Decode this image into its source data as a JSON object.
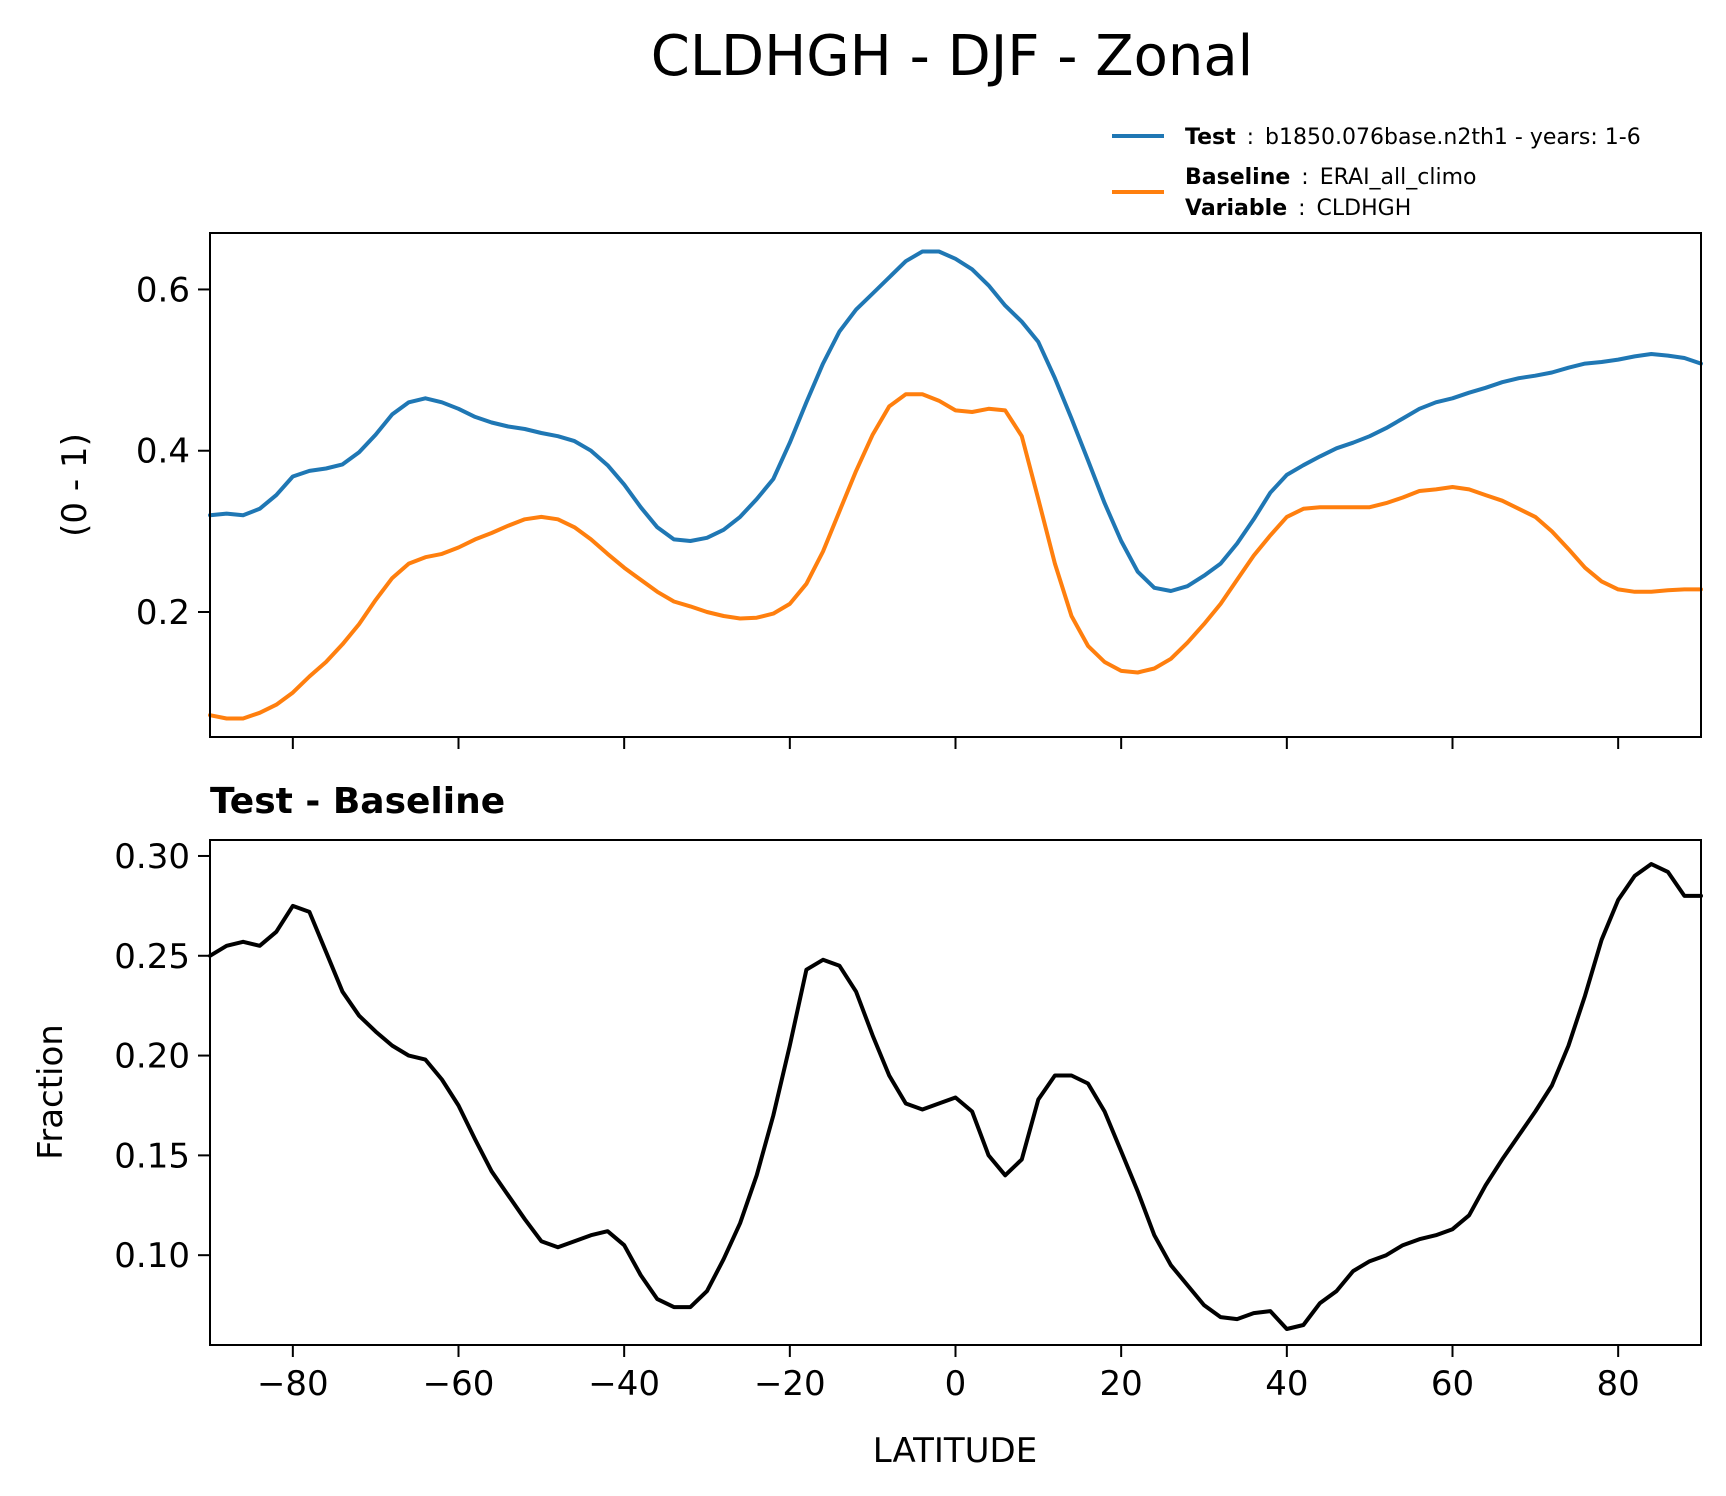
{
  "figure": {
    "title": "CLDHGH - DJF - Zonal"
  },
  "legend": {
    "test_key": "Test",
    "test_value": "b1850.076base.n2th1 - years: 1-6",
    "baseline_key": "Baseline",
    "baseline_value": "ERAI_all_climo",
    "variable_key": "Variable",
    "variable_value": "CLDHGH",
    "sep": ":"
  },
  "chart_data": [
    {
      "type": "line",
      "panel": "top",
      "title": "",
      "xlabel": "",
      "ylabel": "(0 - 1)",
      "xlim": [
        -90,
        90
      ],
      "ylim": [
        0.045,
        0.67
      ],
      "xticks": [
        -80,
        -60,
        -40,
        -20,
        0,
        20,
        40,
        60,
        80
      ],
      "yticks": [
        0.2,
        0.4,
        0.6
      ],
      "ytick_labels": [
        "0.2",
        "0.4",
        "0.6"
      ],
      "show_xtick_labels": false,
      "grid": false,
      "series": [
        {
          "name": "Test",
          "color": "#1f77b4",
          "x": [
            -90,
            -88,
            -86,
            -84,
            -82,
            -80,
            -78,
            -76,
            -74,
            -72,
            -70,
            -68,
            -66,
            -64,
            -62,
            -60,
            -58,
            -56,
            -54,
            -52,
            -50,
            -48,
            -46,
            -44,
            -42,
            -40,
            -38,
            -36,
            -34,
            -32,
            -30,
            -28,
            -26,
            -24,
            -22,
            -20,
            -18,
            -16,
            -14,
            -12,
            -10,
            -8,
            -6,
            -4,
            -2,
            0,
            2,
            4,
            6,
            8,
            10,
            12,
            14,
            16,
            18,
            20,
            22,
            24,
            26,
            28,
            30,
            32,
            34,
            36,
            38,
            40,
            42,
            44,
            46,
            48,
            50,
            52,
            54,
            56,
            58,
            60,
            62,
            64,
            66,
            68,
            70,
            72,
            74,
            76,
            78,
            80,
            82,
            84,
            86,
            88,
            90
          ],
          "y": [
            0.32,
            0.322,
            0.32,
            0.328,
            0.345,
            0.368,
            0.375,
            0.378,
            0.383,
            0.398,
            0.42,
            0.445,
            0.46,
            0.465,
            0.46,
            0.452,
            0.442,
            0.435,
            0.43,
            0.427,
            0.422,
            0.418,
            0.412,
            0.4,
            0.382,
            0.358,
            0.33,
            0.305,
            0.29,
            0.288,
            0.292,
            0.302,
            0.318,
            0.34,
            0.365,
            0.41,
            0.46,
            0.508,
            0.548,
            0.575,
            0.595,
            0.615,
            0.635,
            0.647,
            0.647,
            0.638,
            0.625,
            0.605,
            0.58,
            0.56,
            0.535,
            0.49,
            0.44,
            0.388,
            0.335,
            0.288,
            0.25,
            0.23,
            0.226,
            0.232,
            0.245,
            0.26,
            0.285,
            0.315,
            0.348,
            0.37,
            0.382,
            0.393,
            0.403,
            0.41,
            0.418,
            0.428,
            0.44,
            0.452,
            0.46,
            0.465,
            0.472,
            0.478,
            0.485,
            0.49,
            0.493,
            0.497,
            0.503,
            0.508,
            0.51,
            0.513,
            0.517,
            0.52,
            0.518,
            0.515,
            0.508
          ]
        },
        {
          "name": "Baseline",
          "color": "#ff7f0e",
          "x": [
            -90,
            -88,
            -86,
            -84,
            -82,
            -80,
            -78,
            -76,
            -74,
            -72,
            -70,
            -68,
            -66,
            -64,
            -62,
            -60,
            -58,
            -56,
            -54,
            -52,
            -50,
            -48,
            -46,
            -44,
            -42,
            -40,
            -38,
            -36,
            -34,
            -32,
            -30,
            -28,
            -26,
            -24,
            -22,
            -20,
            -18,
            -16,
            -14,
            -12,
            -10,
            -8,
            -6,
            -4,
            -2,
            0,
            2,
            4,
            6,
            8,
            10,
            12,
            14,
            16,
            18,
            20,
            22,
            24,
            26,
            28,
            30,
            32,
            34,
            36,
            38,
            40,
            42,
            44,
            46,
            48,
            50,
            52,
            54,
            56,
            58,
            60,
            62,
            64,
            66,
            68,
            70,
            72,
            74,
            76,
            78,
            80,
            82,
            84,
            86,
            88,
            90
          ],
          "y": [
            0.072,
            0.068,
            0.068,
            0.075,
            0.085,
            0.1,
            0.12,
            0.138,
            0.16,
            0.185,
            0.215,
            0.242,
            0.26,
            0.268,
            0.272,
            0.28,
            0.29,
            0.298,
            0.307,
            0.315,
            0.318,
            0.315,
            0.305,
            0.29,
            0.272,
            0.255,
            0.24,
            0.225,
            0.213,
            0.207,
            0.2,
            0.195,
            0.192,
            0.193,
            0.198,
            0.21,
            0.235,
            0.275,
            0.325,
            0.375,
            0.42,
            0.455,
            0.47,
            0.47,
            0.462,
            0.45,
            0.448,
            0.452,
            0.45,
            0.418,
            0.34,
            0.26,
            0.195,
            0.158,
            0.138,
            0.127,
            0.125,
            0.13,
            0.142,
            0.162,
            0.185,
            0.21,
            0.24,
            0.27,
            0.295,
            0.318,
            0.328,
            0.33,
            0.33,
            0.33,
            0.33,
            0.335,
            0.342,
            0.35,
            0.352,
            0.355,
            0.352,
            0.345,
            0.338,
            0.328,
            0.318,
            0.3,
            0.278,
            0.255,
            0.238,
            0.228,
            0.225,
            0.225,
            0.227,
            0.228,
            0.228
          ]
        }
      ]
    },
    {
      "type": "line",
      "panel": "bottom",
      "title": "Test - Baseline",
      "xlabel": "LATITUDE",
      "ylabel": "Fraction",
      "xlim": [
        -90,
        90
      ],
      "ylim": [
        0.055,
        0.308
      ],
      "xticks": [
        -80,
        -60,
        -40,
        -20,
        0,
        20,
        40,
        60,
        80
      ],
      "xtick_labels": [
        "−80",
        "−60",
        "−40",
        "−20",
        "0",
        "20",
        "40",
        "60",
        "80"
      ],
      "yticks": [
        0.1,
        0.15,
        0.2,
        0.25,
        0.3
      ],
      "ytick_labels": [
        "0.10",
        "0.15",
        "0.20",
        "0.25",
        "0.30"
      ],
      "show_xtick_labels": true,
      "grid": false,
      "series": [
        {
          "color": "#000000",
          "x": [
            -90,
            -88,
            -86,
            -84,
            -82,
            -80,
            -78,
            -76,
            -74,
            -72,
            -70,
            -68,
            -66,
            -64,
            -62,
            -60,
            -58,
            -56,
            -54,
            -52,
            -50,
            -48,
            -46,
            -44,
            -42,
            -40,
            -38,
            -36,
            -34,
            -32,
            -30,
            -28,
            -26,
            -24,
            -22,
            -20,
            -18,
            -16,
            -14,
            -12,
            -10,
            -8,
            -6,
            -4,
            -2,
            0,
            2,
            4,
            6,
            8,
            10,
            12,
            14,
            16,
            18,
            20,
            22,
            24,
            26,
            28,
            30,
            32,
            34,
            36,
            38,
            40,
            42,
            44,
            46,
            48,
            50,
            52,
            54,
            56,
            58,
            60,
            62,
            64,
            66,
            68,
            70,
            72,
            74,
            76,
            78,
            80,
            82,
            84,
            86,
            88,
            90
          ],
          "y": [
            0.25,
            0.255,
            0.257,
            0.255,
            0.262,
            0.275,
            0.272,
            0.252,
            0.232,
            0.22,
            0.212,
            0.205,
            0.2,
            0.198,
            0.188,
            0.175,
            0.158,
            0.142,
            0.13,
            0.118,
            0.107,
            0.104,
            0.107,
            0.11,
            0.112,
            0.105,
            0.09,
            0.078,
            0.074,
            0.074,
            0.082,
            0.098,
            0.116,
            0.14,
            0.17,
            0.205,
            0.243,
            0.248,
            0.245,
            0.232,
            0.21,
            0.19,
            0.176,
            0.173,
            0.176,
            0.179,
            0.172,
            0.15,
            0.14,
            0.148,
            0.178,
            0.19,
            0.19,
            0.186,
            0.172,
            0.152,
            0.132,
            0.11,
            0.095,
            0.085,
            0.075,
            0.069,
            0.068,
            0.071,
            0.072,
            0.063,
            0.065,
            0.076,
            0.082,
            0.092,
            0.097,
            0.1,
            0.105,
            0.108,
            0.11,
            0.113,
            0.12,
            0.135,
            0.148,
            0.16,
            0.172,
            0.185,
            0.205,
            0.23,
            0.258,
            0.278,
            0.29,
            0.296,
            0.292,
            0.28,
            0.28
          ]
        }
      ]
    }
  ]
}
